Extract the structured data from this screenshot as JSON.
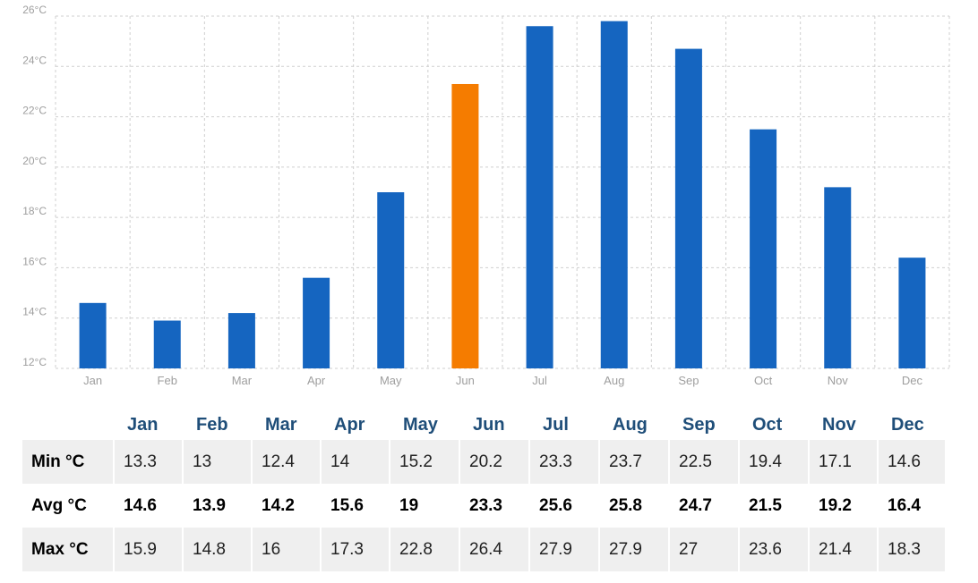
{
  "chart_data": {
    "type": "bar",
    "categories": [
      "Jan",
      "Feb",
      "Mar",
      "Apr",
      "May",
      "Jun",
      "Jul",
      "Aug",
      "Sep",
      "Oct",
      "Nov",
      "Dec"
    ],
    "values": [
      14.6,
      13.9,
      14.2,
      15.6,
      19,
      23.3,
      25.6,
      25.8,
      24.7,
      21.5,
      19.2,
      16.4
    ],
    "highlight_index": 5,
    "ylim": [
      12,
      26
    ],
    "yticks": [
      "12°C",
      "14°C",
      "16°C",
      "18°C",
      "20°C",
      "22°C",
      "24°C",
      "26°C"
    ],
    "grid": true,
    "colors": {
      "bar": "#1565c0",
      "highlight": "#f57c00"
    }
  },
  "table": {
    "months": [
      "Jan",
      "Feb",
      "Mar",
      "Apr",
      "May",
      "Jun",
      "Jul",
      "Aug",
      "Sep",
      "Oct",
      "Nov",
      "Dec"
    ],
    "rows": [
      {
        "label": "Min °C",
        "values": [
          "13.3",
          "13",
          "12.4",
          "14",
          "15.2",
          "20.2",
          "23.3",
          "23.7",
          "22.5",
          "19.4",
          "17.1",
          "14.6"
        ]
      },
      {
        "label": "Avg °C",
        "values": [
          "14.6",
          "13.9",
          "14.2",
          "15.6",
          "19",
          "23.3",
          "25.6",
          "25.8",
          "24.7",
          "21.5",
          "19.2",
          "16.4"
        ]
      },
      {
        "label": "Max °C",
        "values": [
          "15.9",
          "14.8",
          "16",
          "17.3",
          "22.8",
          "26.4",
          "27.9",
          "27.9",
          "27",
          "23.6",
          "21.4",
          "18.3"
        ]
      }
    ]
  }
}
